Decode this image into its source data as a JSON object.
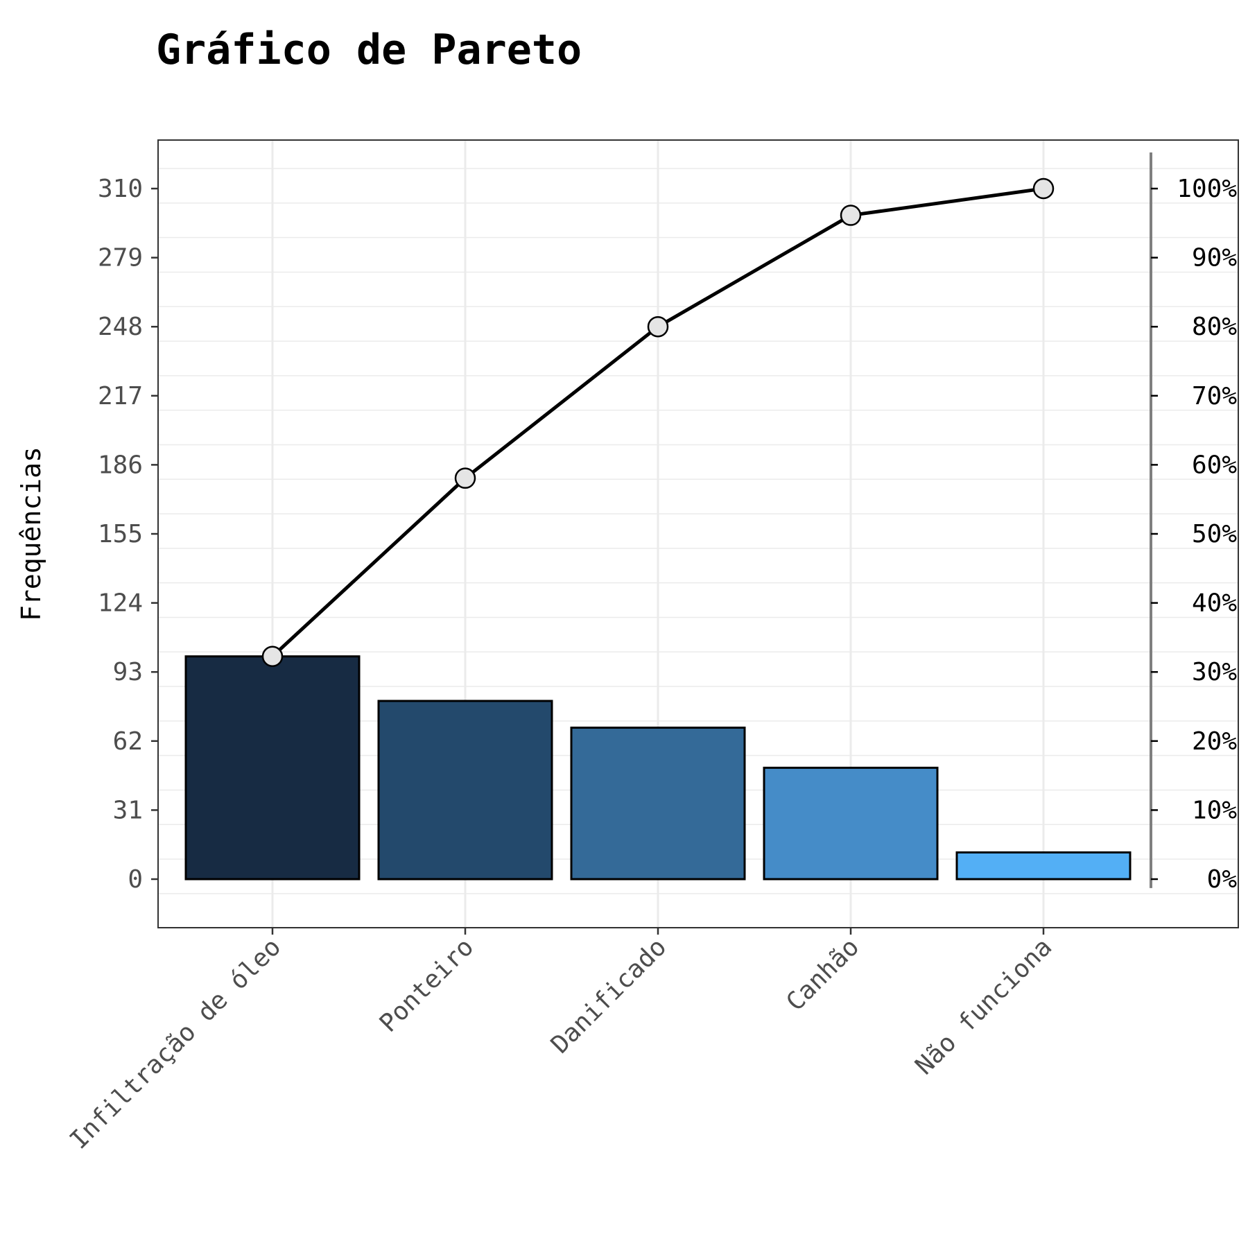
{
  "chart_data": {
    "type": "bar",
    "title": "Gráfico de Pareto",
    "xlabel": "",
    "ylabel": "Frequências",
    "categories": [
      "Infiltração de óleo",
      "Ponteiro",
      "Danificado",
      "Canhão",
      "Não funciona"
    ],
    "values": [
      100,
      80,
      68,
      50,
      12
    ],
    "cumulative_percent": [
      32.3,
      58.1,
      80.0,
      96.1,
      100.0
    ],
    "ylim": [
      -22,
      332
    ],
    "y_ticks": [
      0,
      31,
      62,
      93,
      124,
      155,
      186,
      217,
      248,
      279,
      310
    ],
    "y_tick_labels": [
      "0",
      "31",
      "62",
      "93",
      "124",
      "155",
      "186",
      "217",
      "248",
      "279",
      "310"
    ],
    "secondary_axis_ticks": [
      "0%",
      "10%",
      "20%",
      "30%",
      "40%",
      "50%",
      "60%",
      "70%",
      "80%",
      "90%",
      "100%"
    ],
    "grid": true,
    "bar_colors": [
      "#172b43",
      "#23496c",
      "#346a98",
      "#458cc8",
      "#53aff5"
    ],
    "line_color": "#000000",
    "point_fill": "#e5e5e5"
  }
}
